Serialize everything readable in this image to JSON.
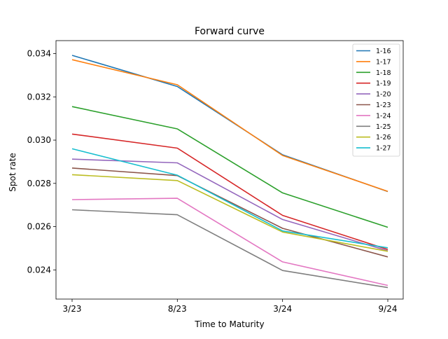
{
  "chart_data": {
    "type": "line",
    "title": "Forward curve",
    "xlabel": "Time to Maturity",
    "ylabel": "Spot rate",
    "categories": [
      "3/23",
      "8/23",
      "3/24",
      "9/24"
    ],
    "ylim": [
      0.02265,
      0.0346
    ],
    "yticks": [
      0.024,
      0.026,
      0.028,
      0.03,
      0.032,
      0.034
    ],
    "ytick_labels": [
      "0.024",
      "0.026",
      "0.028",
      "0.030",
      "0.032",
      "0.034"
    ],
    "grid": false,
    "legend_position": "top-right",
    "series": [
      {
        "name": "1-16",
        "color": "#1f77b4",
        "values": [
          0.03392,
          0.03248,
          0.02932,
          0.02762
        ]
      },
      {
        "name": "1-17",
        "color": "#ff7f0e",
        "values": [
          0.03372,
          0.03256,
          0.02929,
          0.02763
        ]
      },
      {
        "name": "1-18",
        "color": "#2ca02c",
        "values": [
          0.03155,
          0.03052,
          0.02756,
          0.02597
        ]
      },
      {
        "name": "1-19",
        "color": "#d62728",
        "values": [
          0.03028,
          0.02963,
          0.02652,
          0.02494
        ]
      },
      {
        "name": "1-20",
        "color": "#9467bd",
        "values": [
          0.02912,
          0.02895,
          0.02633,
          0.02488
        ]
      },
      {
        "name": "1-23",
        "color": "#8c564b",
        "values": [
          0.02871,
          0.02836,
          0.02592,
          0.0246
        ]
      },
      {
        "name": "1-24",
        "color": "#e377c2",
        "values": [
          0.02725,
          0.02731,
          0.02437,
          0.02328
        ]
      },
      {
        "name": "1-25",
        "color": "#7f7f7f",
        "values": [
          0.02678,
          0.02655,
          0.02397,
          0.02318
        ]
      },
      {
        "name": "1-26",
        "color": "#bcbd22",
        "values": [
          0.0284,
          0.02813,
          0.02575,
          0.02486
        ]
      },
      {
        "name": "1-27",
        "color": "#17becf",
        "values": [
          0.0296,
          0.02838,
          0.0258,
          0.02502
        ]
      }
    ]
  }
}
